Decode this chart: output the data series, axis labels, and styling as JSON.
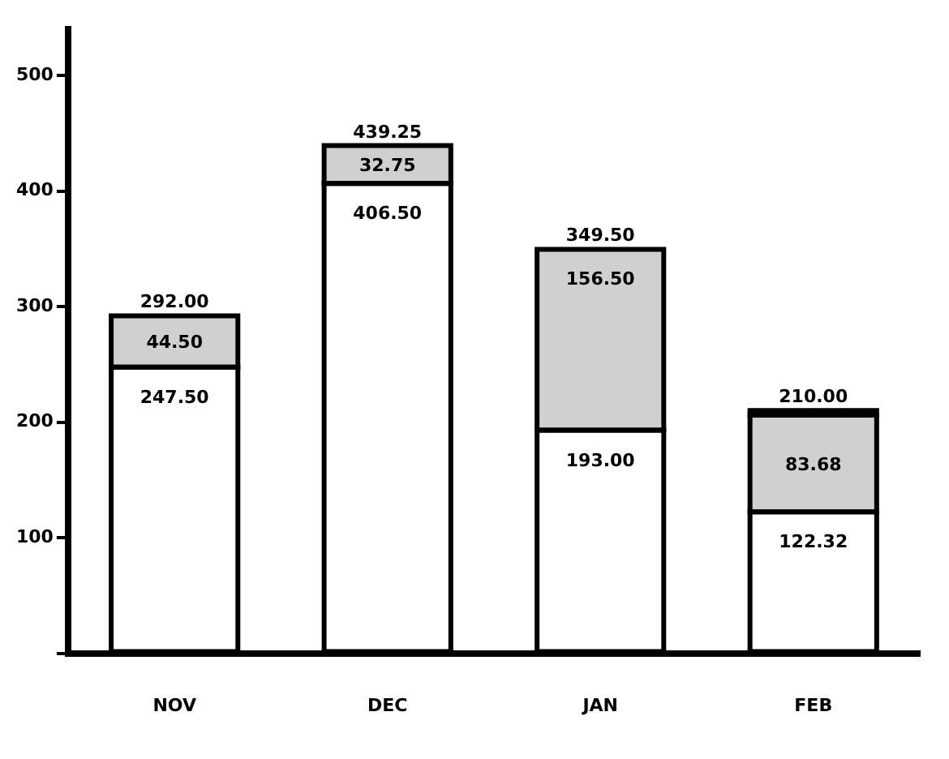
{
  "chart_data": {
    "type": "bar",
    "stacked": true,
    "categories": [
      "NOV",
      "DEC",
      "JAN",
      "FEB"
    ],
    "series": [
      {
        "color": "#ffffff",
        "values": [
          247.5,
          406.5,
          193.0,
          122.32
        ],
        "value_labels": [
          "247.50",
          "406.50",
          "193.00",
          "122.32"
        ]
      },
      {
        "color": "#d0d0d0",
        "values": [
          44.5,
          32.75,
          156.5,
          83.68
        ],
        "value_labels": [
          "44.50",
          "32.75",
          "156.50",
          "83.68"
        ]
      },
      {
        "color": "#000000",
        "values": [
          null,
          null,
          null,
          4.0
        ],
        "value_labels": [
          null,
          null,
          null,
          null
        ]
      }
    ],
    "totals": [
      "292.00",
      "439.25",
      "349.50",
      "210.00"
    ],
    "ylim": [
      0,
      540
    ],
    "yticks": [
      {
        "value": 0,
        "label": null
      },
      100,
      200,
      300,
      400,
      500
    ],
    "grid": false,
    "legend": false
  }
}
